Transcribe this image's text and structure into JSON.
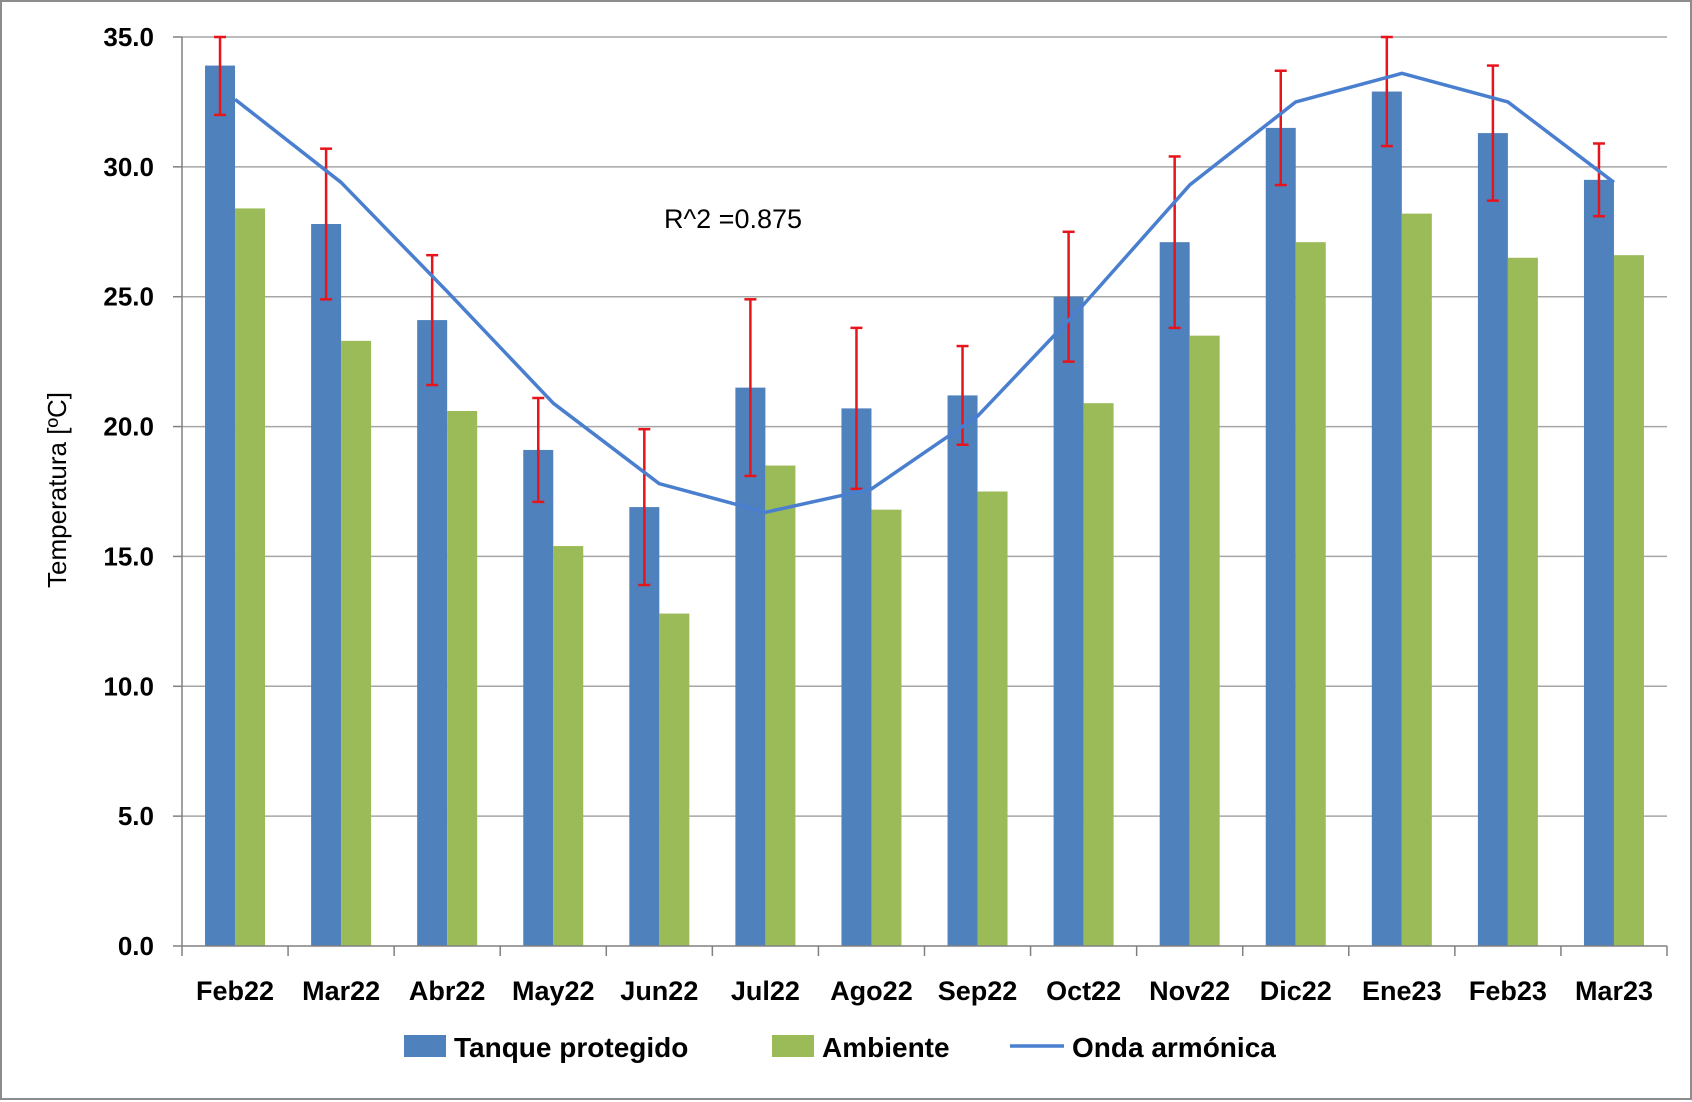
{
  "chart_data": {
    "type": "bar",
    "title": "",
    "xlabel": "",
    "ylabel": "Temperatura [ºC]",
    "ylim": [
      0,
      35
    ],
    "yticks": [
      "0.0",
      "5.0",
      "10.0",
      "15.0",
      "20.0",
      "25.0",
      "30.0",
      "35.0"
    ],
    "grid": true,
    "legend_position": "bottom",
    "annotation": "R^2 =0.875",
    "categories": [
      "Feb22",
      "Mar22",
      "Abr22",
      "May22",
      "Jun22",
      "Jul22",
      "Ago22",
      "Sep22",
      "Oct22",
      "Nov22",
      "Dic22",
      "Ene23",
      "Feb23",
      "Mar23"
    ],
    "series": [
      {
        "name": "Tanque protegido",
        "type": "bar",
        "color": "#4f81bd",
        "values": [
          33.9,
          27.8,
          24.1,
          19.1,
          16.9,
          21.5,
          20.7,
          21.2,
          25.0,
          27.1,
          31.5,
          32.9,
          31.3,
          29.5
        ],
        "error": [
          1.9,
          2.9,
          2.5,
          2.0,
          3.0,
          3.4,
          3.1,
          1.9,
          2.5,
          3.3,
          2.2,
          2.1,
          2.6,
          1.4
        ],
        "error_color": "#e8141c"
      },
      {
        "name": "Ambiente",
        "type": "bar",
        "color": "#9bbb59",
        "values": [
          28.4,
          23.3,
          20.6,
          15.4,
          12.8,
          18.5,
          16.8,
          17.5,
          20.9,
          23.5,
          27.1,
          28.2,
          26.5,
          26.6
        ]
      },
      {
        "name": "Onda armónica",
        "type": "line",
        "color": "#4a7fd0",
        "values": [
          32.6,
          29.4,
          25.2,
          20.9,
          17.8,
          16.7,
          17.6,
          20.4,
          24.7,
          29.3,
          32.5,
          33.6,
          32.5,
          29.4
        ]
      }
    ]
  }
}
